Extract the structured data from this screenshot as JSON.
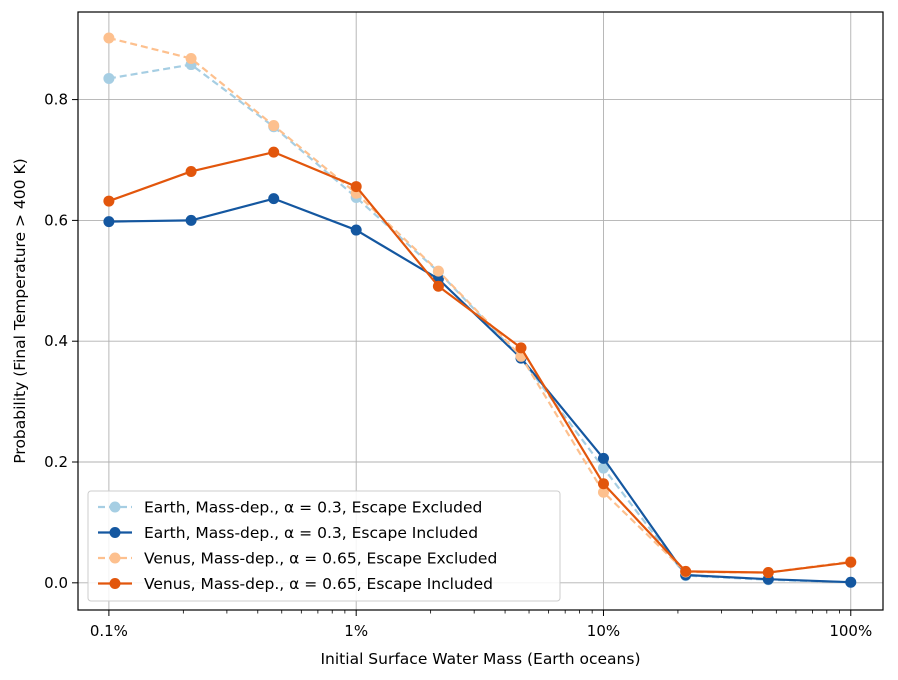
{
  "chart_data": {
    "type": "line",
    "title": "",
    "xlabel": "Initial Surface Water Mass (Earth oceans)",
    "ylabel": "Probability (Final Temperature > 400 K)",
    "xscale": "log",
    "xlim": [
      0.00075,
      1.35
    ],
    "ylim": [
      -0.045,
      0.945
    ],
    "xticks": [
      {
        "value": 0.001,
        "label": "0.1%"
      },
      {
        "value": 0.01,
        "label": "1%"
      },
      {
        "value": 0.1,
        "label": "10%"
      },
      {
        "value": 1.0,
        "label": "100%"
      }
    ],
    "yticks": [
      {
        "value": 0.0,
        "label": "0.0"
      },
      {
        "value": 0.2,
        "label": "0.2"
      },
      {
        "value": 0.4,
        "label": "0.4"
      },
      {
        "value": 0.6,
        "label": "0.6"
      },
      {
        "value": 0.8,
        "label": "0.8"
      }
    ],
    "grid": true,
    "legend_position": "lower-left",
    "x": [
      0.001,
      0.00215,
      0.00464,
      0.01,
      0.0215,
      0.0464,
      0.1,
      0.215,
      0.464,
      1.0
    ],
    "series": [
      {
        "name": "Earth, Mass-dep., α = 0.3, Escape Excluded",
        "color": "#a6cee3",
        "dashed": true,
        "values": [
          0.835,
          0.858,
          0.755,
          0.638,
          0.515,
          0.372,
          0.19,
          0.012,
          0.005,
          0.001
        ]
      },
      {
        "name": "Earth, Mass-dep., α = 0.3, Escape Included",
        "color": "#1457a0",
        "dashed": false,
        "values": [
          0.598,
          0.6,
          0.636,
          0.584,
          0.503,
          0.372,
          0.206,
          0.013,
          0.006,
          0.001
        ]
      },
      {
        "name": "Venus, Mass-dep., α = 0.65, Escape Excluded",
        "color": "#fdc08e",
        "dashed": true,
        "values": [
          0.902,
          0.868,
          0.757,
          0.645,
          0.516,
          0.375,
          0.15,
          0.018,
          0.017,
          0.035
        ]
      },
      {
        "name": "Venus, Mass-dep., α = 0.65, Escape Included",
        "color": "#e2560c",
        "dashed": false,
        "values": [
          0.632,
          0.681,
          0.713,
          0.656,
          0.491,
          0.389,
          0.164,
          0.019,
          0.017,
          0.034
        ]
      }
    ]
  }
}
